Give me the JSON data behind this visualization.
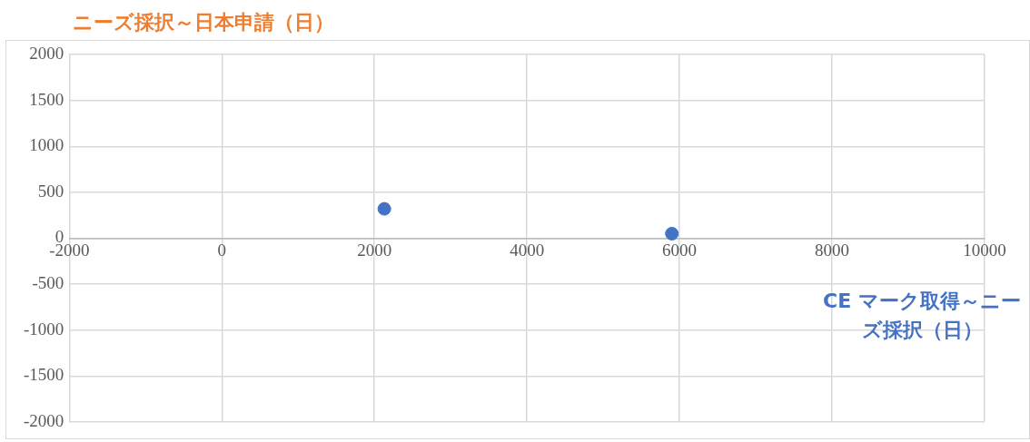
{
  "chart_data": {
    "type": "scatter",
    "ylabel": "ニーズ採択～日本申請（日）",
    "xlabel": "CE マーク取得～ニーズ採択（日）",
    "series": [
      {
        "color": "#4472c4",
        "x": [
          2130,
          5900
        ],
        "values": [
          320,
          50
        ]
      }
    ],
    "xlim": [
      -2000,
      10000
    ],
    "xticks": [
      -2000,
      0,
      2000,
      4000,
      6000,
      8000,
      10000
    ],
    "ylim": [
      -2000,
      2000
    ],
    "yticks": [
      -2000,
      -1500,
      -1000,
      -500,
      0,
      500,
      1000,
      1500,
      2000
    ],
    "grid": true,
    "marker": "circle",
    "legend": false
  }
}
